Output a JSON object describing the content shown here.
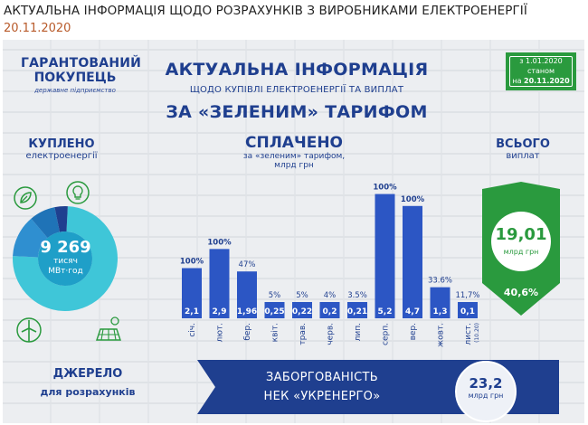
{
  "page": {
    "title": "АКТУАЛЬНА ІНФОРМАЦІЯ ЩОДО РОЗРАХУНКІВ З ВИРОБНИКАМИ ЕЛЕКТРОЕНЕРГІЇ",
    "date": "20.11.2020"
  },
  "logo": {
    "line1": "ГАРАНТОВАНИЙ",
    "line2": "ПОКУПЕЦЬ",
    "line3": "державне підприємство"
  },
  "headline": {
    "line1": "АКТУАЛЬНА ІНФОРМАЦІЯ",
    "line2": "ЩОДО КУПІВЛІ ЕЛЕКТРОЕНЕРГІЇ ТА ВИПЛАТ",
    "line3": "ЗА «ЗЕЛЕНИМ» ТАРИФОМ"
  },
  "date_badge": {
    "line1": "з 1.01.2020",
    "line2": "станом",
    "prefix": "на ",
    "date": "20.11.2020"
  },
  "bought": {
    "title": "КУПЛЕНО",
    "subtitle": "електроенергії",
    "value": "9 269",
    "unit1": "тисяч",
    "unit2": "МВт·год"
  },
  "paid": {
    "title": "СПЛАЧЕНО",
    "subtitle1": "за «зеленим» тарифом,",
    "subtitle2": "млрд грн"
  },
  "total": {
    "title": "ВСЬОГО",
    "subtitle": "виплат",
    "value": "19,01",
    "unit": "млрд грн",
    "percent": "40,6%"
  },
  "source": {
    "line1": "ДЖЕРЕЛО",
    "line2": "для розрахунків"
  },
  "debt": {
    "line1": "ЗАБОРГОВАНІСТЬ",
    "line2": "НЕК «УКРЕНЕРГО»",
    "value": "23,2",
    "unit": "млрд грн"
  },
  "colors": {
    "navy": "#1f3f8f",
    "bar": "#2c56c4",
    "green": "#2a9a3e",
    "cyan": "#3fc6d8"
  },
  "icons": [
    "leaf-icon",
    "bulb-icon",
    "wind-turbine-icon",
    "solar-panel-icon"
  ],
  "chart_data": {
    "type": "bar",
    "categories": [
      "січ.",
      "лют.",
      "бер.",
      "квіт.",
      "трав.",
      "черв.",
      "лип.",
      "серп.",
      "вер.",
      "жовт.",
      "лист."
    ],
    "values": [
      2.1,
      2.9,
      1.96,
      0.25,
      0.22,
      0.2,
      0.21,
      5.2,
      4.7,
      1.3,
      0.1
    ],
    "value_labels": [
      "2,1",
      "2,9",
      "1,96",
      "0,25",
      "0,22",
      "0,2",
      "0,21",
      "5,2",
      "4,7",
      "1,3",
      "0,1"
    ],
    "percent_labels": [
      "100%",
      "100%",
      "47%",
      "5%",
      "5%",
      "4%",
      "3.5%",
      "100%",
      "100%",
      "33.6%",
      "11,7%"
    ],
    "category_notes": [
      "",
      "",
      "",
      "",
      "",
      "",
      "",
      "",
      "",
      "",
      "(10.20)"
    ],
    "ylim": [
      0,
      5.6
    ]
  },
  "donut_data": {
    "slices": [
      0.75,
      0.13,
      0.08,
      0.04
    ]
  }
}
